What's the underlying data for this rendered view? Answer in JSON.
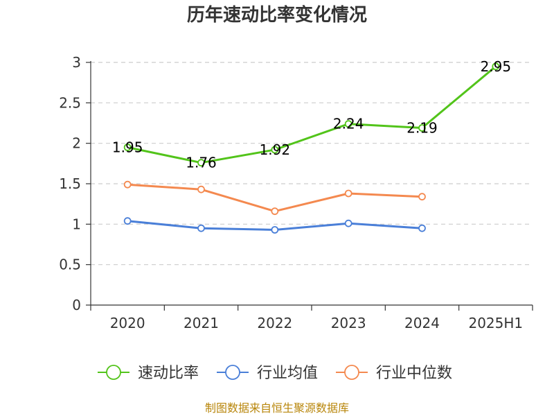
{
  "chart_data": {
    "type": "line",
    "title": "历年速动比率变化情况",
    "categories": [
      "2020",
      "2021",
      "2022",
      "2023",
      "2024",
      "2025H1"
    ],
    "y_ticks": [
      "0",
      "0.5",
      "1",
      "1.5",
      "2",
      "2.5",
      "3"
    ],
    "ylim": [
      0,
      3
    ],
    "grid": true,
    "legend_position": "bottom",
    "series": [
      {
        "name": "速动比率",
        "color": "#52c41a",
        "values": [
          1.95,
          1.76,
          1.92,
          2.24,
          2.19,
          2.95
        ],
        "labels": [
          "1.95",
          "1.76",
          "1.92",
          "2.24",
          "2.19",
          "2.95"
        ]
      },
      {
        "name": "行业均值",
        "color": "#4a7fd8",
        "values": [
          1.04,
          0.95,
          0.93,
          1.01,
          0.95,
          null
        ],
        "labels": []
      },
      {
        "name": "行业中位数",
        "color": "#f4894f",
        "values": [
          1.49,
          1.43,
          1.16,
          1.38,
          1.34,
          null
        ],
        "labels": []
      }
    ]
  },
  "source": "制图数据来自恒生聚源数据库"
}
